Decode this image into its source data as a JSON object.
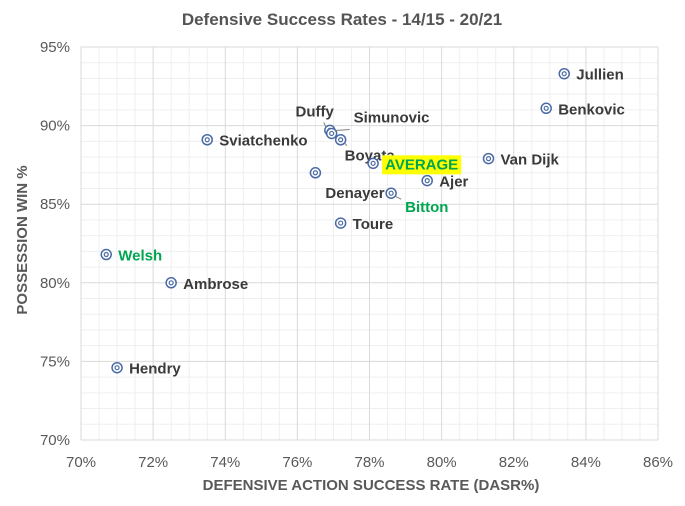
{
  "chart_data": {
    "type": "scatter",
    "title": "Defensive Success Rates - 14/15 - 20/21",
    "xlabel": "DEFENSIVE ACTION SUCCESS RATE (DASR%)",
    "ylabel": "POSSESSION WIN %",
    "xlim": [
      70,
      86
    ],
    "ylim": [
      70,
      95
    ],
    "x_ticks": [
      "70%",
      "72%",
      "74%",
      "76%",
      "78%",
      "80%",
      "82%",
      "84%",
      "86%"
    ],
    "y_ticks": [
      "70%",
      "75%",
      "80%",
      "85%",
      "90%",
      "95%"
    ],
    "grid": true,
    "colors": {
      "marker": "#4a6aa5",
      "label": "#3a3a3a",
      "highlight_label": "#00a550",
      "average_bg": "#ffff00",
      "grid": "#d9d9d9",
      "minor_grid": "#efefef"
    },
    "points": [
      {
        "name": "Jullien",
        "x": 83.4,
        "y": 93.3,
        "highlight": false
      },
      {
        "name": "Benkovic",
        "x": 82.9,
        "y": 91.1,
        "highlight": false
      },
      {
        "name": "Duffy",
        "x": 76.9,
        "y": 89.7,
        "highlight": false
      },
      {
        "name": "Simunovic",
        "x": 76.95,
        "y": 89.5,
        "highlight": false
      },
      {
        "name": "Boyata",
        "x": 77.2,
        "y": 89.1,
        "highlight": false
      },
      {
        "name": "Sviatchenko",
        "x": 73.5,
        "y": 89.1,
        "highlight": false
      },
      {
        "name": "AVERAGE",
        "x": 78.1,
        "y": 87.6,
        "highlight": false,
        "average": true
      },
      {
        "name": "Van Dijk",
        "x": 81.3,
        "y": 87.9,
        "highlight": false
      },
      {
        "name": "Denayer",
        "x": 76.5,
        "y": 87.0,
        "highlight": false
      },
      {
        "name": "Ajer",
        "x": 79.6,
        "y": 86.5,
        "highlight": false
      },
      {
        "name": "Bitton",
        "x": 78.6,
        "y": 85.7,
        "highlight": true
      },
      {
        "name": "Toure",
        "x": 77.2,
        "y": 83.8,
        "highlight": false
      },
      {
        "name": "Welsh",
        "x": 70.7,
        "y": 81.8,
        "highlight": true
      },
      {
        "name": "Ambrose",
        "x": 72.5,
        "y": 80.0,
        "highlight": false
      },
      {
        "name": "Hendry",
        "x": 71.0,
        "y": 74.6,
        "highlight": false
      }
    ]
  }
}
